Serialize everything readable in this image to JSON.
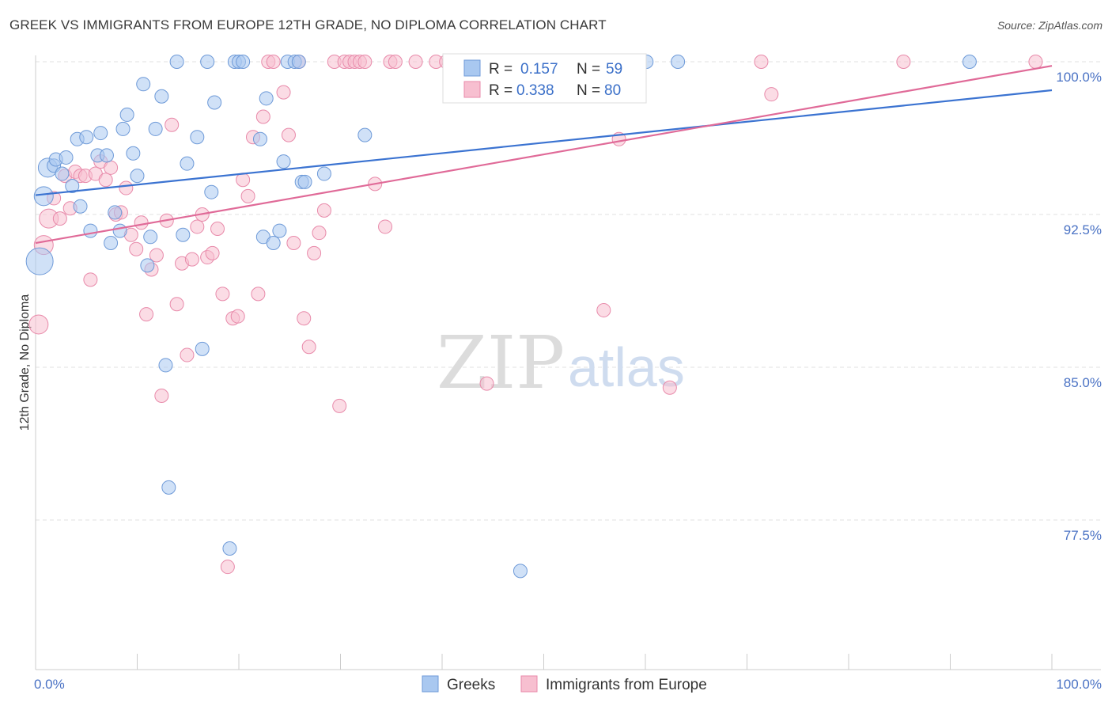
{
  "title": "GREEK VS IMMIGRANTS FROM EUROPE 12TH GRADE, NO DIPLOMA CORRELATION CHART",
  "source": "Source: ZipAtlas.com",
  "watermark": {
    "zip": "ZIP",
    "atlas": "atlas"
  },
  "colors": {
    "greeks_fill": "#a9c8f0",
    "greeks_stroke": "#6e9ad8",
    "greeks_line": "#3b73d1",
    "immigrants_fill": "#f7bfd0",
    "immigrants_stroke": "#e88aaa",
    "immigrants_line": "#e06a98",
    "grid": "#e2e2e2",
    "tick_label": "#4a72c4"
  },
  "legend": {
    "rows": [
      {
        "r_label": "R =",
        "r_value": "0.157",
        "n_label": "N =",
        "n_value": "59"
      },
      {
        "r_label": "R =",
        "r_value": "0.338",
        "n_label": "N =",
        "n_value": "80"
      }
    ]
  },
  "bottom_legend": [
    "Greeks",
    "Immigrants from Europe"
  ],
  "chart_data": {
    "type": "scatter",
    "ylabel": "12th Grade, No Diploma",
    "xlim": [
      0,
      100
    ],
    "ylim": [
      71,
      101.5
    ],
    "yticks": [
      {
        "value": 100.0,
        "label": "100.0%"
      },
      {
        "value": 92.5,
        "label": "92.5%"
      },
      {
        "value": 85.0,
        "label": "85.0%"
      },
      {
        "value": 77.5,
        "label": "77.5%"
      }
    ],
    "xtick_labels": [
      {
        "value": 0,
        "label": "0.0%"
      },
      {
        "value": 100,
        "label": "100.0%"
      }
    ],
    "grid": true,
    "series": [
      {
        "name": "Greeks",
        "trend": {
          "x": [
            0,
            100
          ],
          "y": [
            93.45,
            98.6
          ]
        },
        "points": [
          [
            0.4,
            90.2
          ],
          [
            0.8,
            93.4
          ],
          [
            1.2,
            94.8
          ],
          [
            1.8,
            94.9
          ],
          [
            2.0,
            95.2
          ],
          [
            2.6,
            94.5
          ],
          [
            3.0,
            95.3
          ],
          [
            3.6,
            93.9
          ],
          [
            4.1,
            96.2
          ],
          [
            4.4,
            92.9
          ],
          [
            5.0,
            96.3
          ],
          [
            5.4,
            91.7
          ],
          [
            6.1,
            95.4
          ],
          [
            6.4,
            96.5
          ],
          [
            7.0,
            95.4
          ],
          [
            7.4,
            91.1
          ],
          [
            7.8,
            92.6
          ],
          [
            8.3,
            91.7
          ],
          [
            8.6,
            96.7
          ],
          [
            9.0,
            97.4
          ],
          [
            9.6,
            95.5
          ],
          [
            10.0,
            94.4
          ],
          [
            10.6,
            98.9
          ],
          [
            11.0,
            90.0
          ],
          [
            11.3,
            91.4
          ],
          [
            11.8,
            96.7
          ],
          [
            12.4,
            98.3
          ],
          [
            12.8,
            85.1
          ],
          [
            13.1,
            79.1
          ],
          [
            13.9,
            100.0
          ],
          [
            14.5,
            91.5
          ],
          [
            14.9,
            95.0
          ],
          [
            15.9,
            96.3
          ],
          [
            16.4,
            85.9
          ],
          [
            16.9,
            100.0
          ],
          [
            17.3,
            93.6
          ],
          [
            17.6,
            98.0
          ],
          [
            19.6,
            100.0
          ],
          [
            20.0,
            100.0
          ],
          [
            20.4,
            100.0
          ],
          [
            22.1,
            96.2
          ],
          [
            22.4,
            91.4
          ],
          [
            22.7,
            98.2
          ],
          [
            23.4,
            91.1
          ],
          [
            24.0,
            91.7
          ],
          [
            24.4,
            95.1
          ],
          [
            24.8,
            100.0
          ],
          [
            25.5,
            100.0
          ],
          [
            26.2,
            94.1
          ],
          [
            26.5,
            94.1
          ],
          [
            28.4,
            94.5
          ],
          [
            32.4,
            96.4
          ],
          [
            47.7,
            75.0
          ],
          [
            56.2,
            100.0
          ],
          [
            60.1,
            100.0
          ],
          [
            63.2,
            100.0
          ],
          [
            91.9,
            100.0
          ],
          [
            19.1,
            76.1
          ],
          [
            25.9,
            100.0
          ]
        ]
      },
      {
        "name": "Immigrants from Europe",
        "trend": {
          "x": [
            0,
            100
          ],
          "y": [
            91.1,
            99.8
          ]
        },
        "points": [
          [
            0.3,
            87.1
          ],
          [
            0.8,
            91.0
          ],
          [
            1.3,
            92.3
          ],
          [
            1.8,
            93.3
          ],
          [
            2.4,
            92.3
          ],
          [
            2.9,
            94.4
          ],
          [
            3.4,
            92.8
          ],
          [
            3.9,
            94.6
          ],
          [
            4.4,
            94.4
          ],
          [
            4.9,
            94.4
          ],
          [
            5.4,
            89.3
          ],
          [
            5.9,
            94.5
          ],
          [
            6.4,
            95.1
          ],
          [
            6.9,
            94.2
          ],
          [
            7.4,
            94.8
          ],
          [
            7.9,
            92.5
          ],
          [
            8.4,
            92.6
          ],
          [
            8.9,
            93.8
          ],
          [
            9.4,
            91.5
          ],
          [
            9.9,
            90.8
          ],
          [
            10.4,
            92.1
          ],
          [
            10.9,
            87.6
          ],
          [
            11.4,
            89.8
          ],
          [
            11.9,
            90.5
          ],
          [
            12.4,
            83.6
          ],
          [
            12.9,
            92.2
          ],
          [
            13.4,
            96.9
          ],
          [
            13.9,
            88.1
          ],
          [
            14.4,
            90.1
          ],
          [
            14.9,
            85.6
          ],
          [
            15.4,
            90.3
          ],
          [
            15.9,
            91.9
          ],
          [
            16.4,
            92.5
          ],
          [
            16.9,
            90.4
          ],
          [
            17.4,
            90.6
          ],
          [
            17.9,
            91.8
          ],
          [
            18.4,
            88.6
          ],
          [
            18.9,
            75.2
          ],
          [
            19.4,
            87.4
          ],
          [
            19.9,
            87.5
          ],
          [
            20.4,
            94.2
          ],
          [
            20.9,
            93.4
          ],
          [
            21.4,
            96.3
          ],
          [
            21.9,
            88.6
          ],
          [
            22.4,
            97.3
          ],
          [
            22.9,
            100.0
          ],
          [
            23.4,
            100.0
          ],
          [
            24.4,
            98.5
          ],
          [
            24.9,
            96.4
          ],
          [
            25.4,
            91.1
          ],
          [
            25.9,
            100.0
          ],
          [
            26.4,
            87.4
          ],
          [
            26.9,
            86.0
          ],
          [
            27.4,
            90.6
          ],
          [
            27.9,
            91.6
          ],
          [
            28.4,
            92.7
          ],
          [
            29.4,
            100.0
          ],
          [
            29.9,
            83.1
          ],
          [
            30.4,
            100.0
          ],
          [
            30.9,
            100.0
          ],
          [
            31.4,
            100.0
          ],
          [
            31.9,
            100.0
          ],
          [
            32.4,
            100.0
          ],
          [
            33.4,
            94.0
          ],
          [
            34.4,
            91.9
          ],
          [
            34.9,
            100.0
          ],
          [
            35.4,
            100.0
          ],
          [
            37.4,
            100.0
          ],
          [
            39.4,
            100.0
          ],
          [
            40.4,
            100.0
          ],
          [
            41.4,
            100.0
          ],
          [
            44.4,
            84.2
          ],
          [
            47.4,
            100.0
          ],
          [
            55.9,
            87.8
          ],
          [
            57.4,
            96.2
          ],
          [
            62.4,
            84.0
          ],
          [
            71.4,
            100.0
          ],
          [
            72.4,
            98.4
          ],
          [
            85.4,
            100.0
          ],
          [
            98.4,
            100.0
          ]
        ]
      }
    ]
  }
}
